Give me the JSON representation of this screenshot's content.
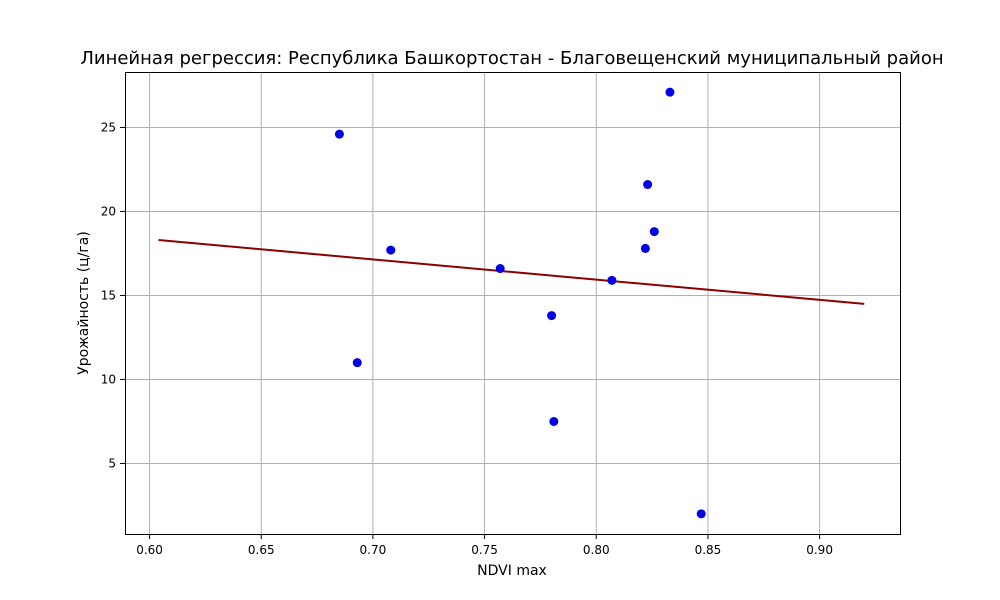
{
  "chart_data": {
    "type": "scatter",
    "title": "Линейная регрессия: Республика Башкортостан - Благовещенский муниципальный район",
    "xlabel": "NDVI max",
    "ylabel": "Урожайность (ц/га)",
    "xlim": [
      0.589,
      0.936
    ],
    "ylim": [
      0.8,
      28.3
    ],
    "x_ticks": [
      0.6,
      0.65,
      0.7,
      0.75,
      0.8,
      0.85,
      0.9
    ],
    "x_tick_labels": [
      "0.60",
      "0.65",
      "0.70",
      "0.75",
      "0.80",
      "0.85",
      "0.90"
    ],
    "y_ticks": [
      5,
      10,
      15,
      20,
      25
    ],
    "y_tick_labels": [
      "5",
      "10",
      "15",
      "20",
      "25"
    ],
    "grid": true,
    "points": [
      {
        "x": 0.685,
        "y": 24.6
      },
      {
        "x": 0.693,
        "y": 11.0
      },
      {
        "x": 0.708,
        "y": 17.7
      },
      {
        "x": 0.757,
        "y": 16.6
      },
      {
        "x": 0.78,
        "y": 13.8
      },
      {
        "x": 0.781,
        "y": 7.5
      },
      {
        "x": 0.807,
        "y": 15.9
      },
      {
        "x": 0.822,
        "y": 17.8
      },
      {
        "x": 0.823,
        "y": 21.6
      },
      {
        "x": 0.826,
        "y": 18.8
      },
      {
        "x": 0.833,
        "y": 27.1
      },
      {
        "x": 0.847,
        "y": 2.0
      }
    ],
    "regression_line": {
      "x": [
        0.604,
        0.92
      ],
      "y": [
        18.3,
        14.5
      ]
    },
    "colors": {
      "points": "#0000e6",
      "line": "#8b0000"
    }
  }
}
